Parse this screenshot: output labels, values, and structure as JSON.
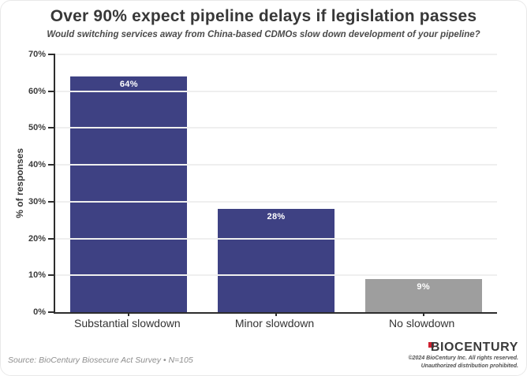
{
  "header": {
    "title": "Over 90% expect pipeline delays if legislation passes",
    "subtitle": "Would switching services away from China-based CDMOs slow down development of your pipeline?"
  },
  "chart_data": {
    "type": "bar",
    "categories": [
      "Substantial slowdown",
      "Minor slowdown",
      "No slowdown"
    ],
    "values": [
      64,
      28,
      9
    ],
    "value_labels": [
      "64%",
      "28%",
      "9%"
    ],
    "bar_colors": [
      "#3e4183",
      "#3e4183",
      "#9e9e9e"
    ],
    "title": "Over 90% expect pipeline delays if legislation passes",
    "xlabel": "",
    "ylabel": "% of responses",
    "ylim": [
      0,
      70
    ],
    "ytick_values": [
      0,
      10,
      20,
      30,
      40,
      50,
      60,
      70
    ],
    "ytick_labels": [
      "0%",
      "10%",
      "20%",
      "30%",
      "40%",
      "50%",
      "60%",
      "70%"
    ],
    "grid": true,
    "legend_position": "none"
  },
  "footer": {
    "source": "Source: BioCentury Biosecure Act Survey • N=105",
    "logo_text": "BIOCENTURY",
    "copyright_line1": "©2024 BioCentury Inc. All rights reserved.",
    "copyright_line2": "Unauthorized distribution prohibited."
  },
  "colors": {
    "bar_primary": "#3e4183",
    "bar_neutral": "#9e9e9e",
    "axis": "#2d2d2d",
    "gridline": "#efefef",
    "title_text": "#383838",
    "source_text": "#8e8e8e",
    "logo_red": "#cf2030"
  }
}
